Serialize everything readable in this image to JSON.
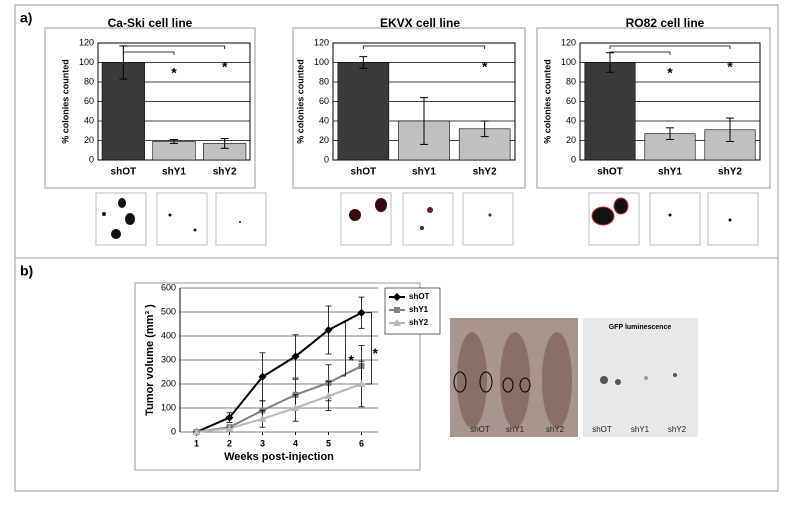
{
  "panel_labels": [
    "a)",
    "b)"
  ],
  "photo_labels": {
    "mice": [
      "shOT",
      "shY1",
      "shY2"
    ],
    "gfp_title": "GFP luminescence",
    "gfp": [
      "shOT",
      "shY1",
      "shY2"
    ]
  },
  "chart_data": [
    {
      "type": "bar",
      "title": "Ca-Ski cell line",
      "y_label": "% colonies counted",
      "categories": [
        "shOT",
        "shY1",
        "shY2"
      ],
      "values": [
        100,
        19,
        17
      ],
      "errors": [
        17,
        2,
        5
      ],
      "colors": [
        "#3a3a3a",
        "#c0c0c0",
        "#c0c0c0"
      ],
      "ylim": [
        0,
        120
      ],
      "yticks": [
        0,
        20,
        40,
        60,
        80,
        100,
        120
      ],
      "grid": true,
      "annotations": [
        "*",
        "*"
      ]
    },
    {
      "type": "bar",
      "title": "EKVX cell line",
      "y_label": "% colonies counted",
      "categories": [
        "shOT",
        "shY1",
        "shY2"
      ],
      "values": [
        100,
        40,
        32
      ],
      "errors": [
        6,
        24,
        8
      ],
      "colors": [
        "#3a3a3a",
        "#c0c0c0",
        "#c0c0c0"
      ],
      "ylim": [
        0,
        120
      ],
      "yticks": [
        0,
        20,
        40,
        60,
        80,
        100,
        120
      ],
      "grid": true,
      "annotations": [
        "*"
      ]
    },
    {
      "type": "bar",
      "title": "RO82 cell line",
      "y_label": "% colonies counted",
      "categories": [
        "shOT",
        "shY1",
        "shY2"
      ],
      "values": [
        100,
        27,
        31
      ],
      "errors": [
        10,
        6,
        12
      ],
      "colors": [
        "#3a3a3a",
        "#c0c0c0",
        "#c0c0c0"
      ],
      "ylim": [
        0,
        120
      ],
      "yticks": [
        0,
        20,
        40,
        60,
        80,
        100,
        120
      ],
      "grid": true,
      "annotations": [
        "*",
        "*"
      ]
    },
    {
      "type": "line",
      "y_label": "Tumor volume (mm³ )",
      "x_label": "Weeks post-injection",
      "x": [
        1,
        2,
        3,
        4,
        5,
        6
      ],
      "xlim": [
        0.5,
        6.5
      ],
      "xticks": [
        1,
        2,
        3,
        4,
        5,
        6
      ],
      "ylim": [
        0,
        600
      ],
      "yticks": [
        0,
        100,
        200,
        300,
        400,
        500,
        600
      ],
      "grid": true,
      "legend": "right",
      "series": [
        {
          "name": "shOT",
          "color": "#000000",
          "marker": "diamond",
          "values": [
            0,
            60,
            230,
            315,
            425,
            497
          ],
          "errors": [
            0,
            20,
            100,
            90,
            100,
            65
          ]
        },
        {
          "name": "shY1",
          "color": "#808080",
          "marker": "square",
          "values": [
            0,
            20,
            90,
            155,
            205,
            275
          ],
          "errors": [
            0,
            10,
            40,
            65,
            75,
            85
          ]
        },
        {
          "name": "shY2",
          "color": "#b8b8b8",
          "marker": "triangle",
          "values": [
            0,
            15,
            55,
            100,
            150,
            200
          ],
          "errors": [
            0,
            5,
            35,
            55,
            60,
            95
          ]
        }
      ],
      "annotations": [
        "*",
        "*"
      ]
    }
  ]
}
